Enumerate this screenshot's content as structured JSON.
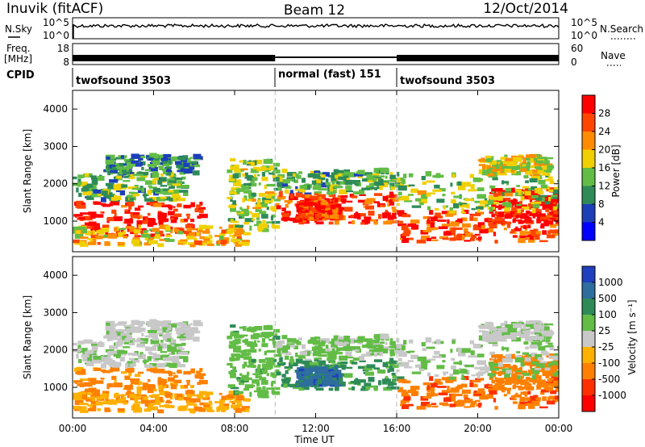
{
  "header": {
    "station": "Inuvik (fitACF)",
    "beam": "Beam 12",
    "date": "12/Oct/2014"
  },
  "time_axis": {
    "label": "Time UT",
    "ticks": [
      "00:00",
      "04:00",
      "08:00",
      "12:00",
      "16:00",
      "20:00",
      "00:00"
    ]
  },
  "nsky_panel": {
    "left_label": "N.Sky",
    "left_ticks": [
      "10^5",
      "10^0"
    ],
    "right_ticks": [
      "10^5",
      "10^0"
    ],
    "right_label": "N.Search"
  },
  "freq_panel": {
    "left_label_1": "Freq.",
    "left_label_2": "[MHz]",
    "left_ticks": [
      "18",
      "8"
    ],
    "right_ticks": [
      "60",
      "0"
    ],
    "right_label": "Nave"
  },
  "cpid_panel": {
    "label": "CPID",
    "segments": [
      {
        "name": "twofsound 3503",
        "start_hr": 0,
        "end_hr": 10
      },
      {
        "name": "normal (fast) 151",
        "start_hr": 10,
        "end_hr": 16
      },
      {
        "name": "twofsound 3503",
        "start_hr": 16,
        "end_hr": 24
      }
    ]
  },
  "power_panel": {
    "ylabel": "Slant Range [km]",
    "yticks": [
      "1000",
      "2000",
      "3000",
      "4000"
    ],
    "colorbar_label": "Power [dB]",
    "colorbar_ticks": [
      "4",
      "8",
      "12",
      "16",
      "20",
      "24",
      "28"
    ],
    "colors": [
      "#0000ff",
      "#1c3fb8",
      "#2e8b57",
      "#62bc46",
      "#f0d000",
      "#ff8c00",
      "#ff4500",
      "#ff0000"
    ]
  },
  "velocity_panel": {
    "ylabel": "Slant Range [km]",
    "yticks": [
      "1000",
      "2000",
      "3000",
      "4000"
    ],
    "colorbar_label": "Velocity [m s⁻¹]",
    "colorbar_ticks": [
      "1000",
      "500",
      "100",
      "25",
      "-25",
      "-100",
      "-500",
      "-1000"
    ],
    "colors": [
      "#1f3fbf",
      "#2e6e9e",
      "#2e8b57",
      "#62bc46",
      "#c8c8c8",
      "#ffb000",
      "#ff8000",
      "#ff3000",
      "#ff0000"
    ]
  },
  "chart_data": {
    "type": "heatmap",
    "x_range_hours": [
      0,
      24
    ],
    "y_range_km": [
      180,
      4500
    ],
    "power_db_range": [
      0,
      30
    ],
    "velocity_range_ms": [
      -1000,
      1000
    ],
    "echo_regions": [
      {
        "t0": 0.0,
        "t1": 6.5,
        "r0": 550,
        "r1": 1450,
        "power_db": 27,
        "velocity_ms": -150
      },
      {
        "t0": 0.0,
        "t1": 8.5,
        "r0": 300,
        "r1": 800,
        "power_db": 18,
        "velocity_ms": -80
      },
      {
        "t0": 0.0,
        "t1": 5.5,
        "r0": 1500,
        "r1": 2200,
        "power_db": 12,
        "velocity_ms": 15
      },
      {
        "t0": 1.5,
        "t1": 6.0,
        "r0": 2200,
        "r1": 2700,
        "power_db": 10,
        "velocity_ms": 5
      },
      {
        "t0": 7.6,
        "t1": 10.0,
        "r0": 700,
        "r1": 2600,
        "power_db": 14,
        "velocity_ms": 70
      },
      {
        "t0": 10.0,
        "t1": 16.0,
        "r0": 900,
        "r1": 1700,
        "power_db": 25,
        "velocity_ms": 150
      },
      {
        "t0": 11.0,
        "t1": 13.0,
        "r0": 1000,
        "r1": 1500,
        "power_db": 26,
        "velocity_ms": 700
      },
      {
        "t0": 10.0,
        "t1": 16.0,
        "r0": 1700,
        "r1": 2300,
        "power_db": 12,
        "velocity_ms": 40
      },
      {
        "t0": 16.0,
        "t1": 24.0,
        "r0": 400,
        "r1": 1200,
        "power_db": 24,
        "velocity_ms": -400
      },
      {
        "t0": 20.5,
        "t1": 24.0,
        "r0": 900,
        "r1": 1800,
        "power_db": 28,
        "velocity_ms": -300
      },
      {
        "t0": 16.0,
        "t1": 24.0,
        "r0": 1200,
        "r1": 2200,
        "power_db": 14,
        "velocity_ms": 30
      },
      {
        "t0": 20.0,
        "t1": 23.5,
        "r0": 2200,
        "r1": 2700,
        "power_db": 17,
        "velocity_ms": 5
      }
    ]
  }
}
